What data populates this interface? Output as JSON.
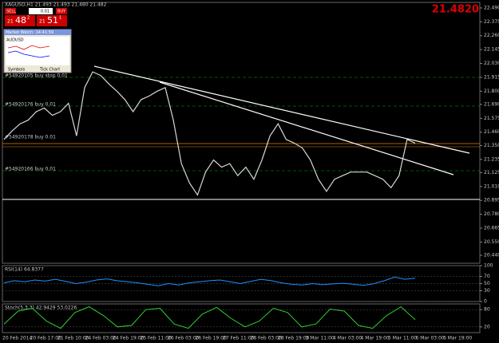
{
  "ui": {
    "title": "XAGUSD,H1 21.493 21.493 21.480 21.482",
    "big_price": "21.4820",
    "sell": "SELL",
    "lot": "0.01",
    "buy": "BUY",
    "bid": [
      "21",
      "48",
      "2"
    ],
    "ask": [
      "21",
      "51",
      "1"
    ],
    "market_watch": "Market Watch: 14:41:59",
    "symbol": "AUDUSD",
    "tabs": [
      "Symbols",
      "Tick Chart"
    ],
    "orders": [
      "#54920105 buy stop 0.01",
      "#54920176 buy 0.01",
      "#54920178 buy 0.01",
      "#54920166 buy 0.01"
    ],
    "dates": [
      "20 Feb 2014",
      "20 Feb 17:00",
      "21 Feb 10:00",
      "24 Feb 03:00",
      "24 Feb 19:00",
      "25 Feb 11:00",
      "26 Feb 03:00",
      "26 Feb 19:00",
      "27 Feb 11:00",
      "28 Feb 03:00",
      "28 Feb 19:00",
      "3 Mar 11:00",
      "4 Mar 03:00",
      "4 Mar 19:00",
      "5 Mar 11:00",
      "6 Mar 03:00",
      "6 Mar 19:00"
    ]
  },
  "chart_data": [
    {
      "type": "line",
      "color": "#d8d8d8",
      "ylim": [
        20.374,
        22.536
      ],
      "yticks": [
        {
          "value": 22.49,
          "label": "22.490"
        },
        {
          "value": 22.375,
          "label": "22.375"
        },
        {
          "value": 22.26,
          "label": "22.260"
        },
        {
          "value": 22.145,
          "label": "22.145"
        },
        {
          "value": 22.03,
          "label": "22.030"
        },
        {
          "value": 21.915,
          "label": "21.915"
        },
        {
          "value": 21.8,
          "label": "21.800"
        },
        {
          "value": 21.69,
          "label": "21.690"
        },
        {
          "value": 21.575,
          "label": "21.575"
        },
        {
          "value": 21.46,
          "label": "21.460"
        },
        {
          "value": 21.35,
          "label": "21.350"
        },
        {
          "value": 21.235,
          "label": "21.235"
        },
        {
          "value": 21.125,
          "label": "21.125"
        },
        {
          "value": 21.01,
          "label": "21.010"
        },
        {
          "value": 20.895,
          "label": "20.895"
        },
        {
          "value": 20.78,
          "label": "20.780"
        },
        {
          "value": 20.665,
          "label": "20.665"
        },
        {
          "value": 20.55,
          "label": "20.550"
        },
        {
          "value": 20.44,
          "label": "20.440"
        }
      ],
      "values": [
        21.4,
        21.47,
        21.53,
        21.56,
        21.63,
        21.66,
        21.6,
        21.63,
        21.7,
        21.43,
        21.83,
        21.96,
        21.93,
        21.86,
        21.8,
        21.73,
        21.63,
        21.73,
        21.76,
        21.8,
        21.83,
        21.56,
        21.2,
        21.04,
        20.94,
        21.13,
        21.23,
        21.17,
        21.2,
        21.1,
        21.17,
        21.07,
        21.23,
        21.43,
        21.53,
        21.4,
        21.37,
        21.33,
        21.23,
        21.07,
        20.97,
        21.07,
        21.1,
        21.13,
        21.13,
        21.13,
        21.1,
        21.07,
        21.0,
        21.1,
        21.4,
        21.37
      ]
    },
    {
      "type": "line",
      "title": "RSI(14) 64.8377",
      "color": "#1e90ff",
      "ylim": [
        0,
        100
      ],
      "yticks": [
        100,
        70,
        50,
        30,
        0
      ],
      "values": [
        52,
        58,
        55,
        60,
        57,
        62,
        56,
        50,
        54,
        60,
        63,
        58,
        55,
        52,
        48,
        44,
        50,
        46,
        52,
        55,
        58,
        60,
        55,
        50,
        56,
        62,
        58,
        52,
        48,
        46,
        50,
        47,
        49,
        51,
        48,
        45,
        50,
        58,
        68,
        62,
        65
      ]
    },
    {
      "type": "line",
      "title": "Stoch(5,3,3) 42.9429 53.0226",
      "color": "#32cd32",
      "ylim": [
        0,
        100
      ],
      "yticks": [
        80,
        20
      ],
      "values": [
        30,
        75,
        85,
        40,
        15,
        70,
        90,
        60,
        20,
        25,
        80,
        85,
        30,
        15,
        65,
        88,
        50,
        20,
        40,
        85,
        70,
        20,
        30,
        82,
        75,
        25,
        15,
        60,
        90,
        45
      ]
    }
  ]
}
